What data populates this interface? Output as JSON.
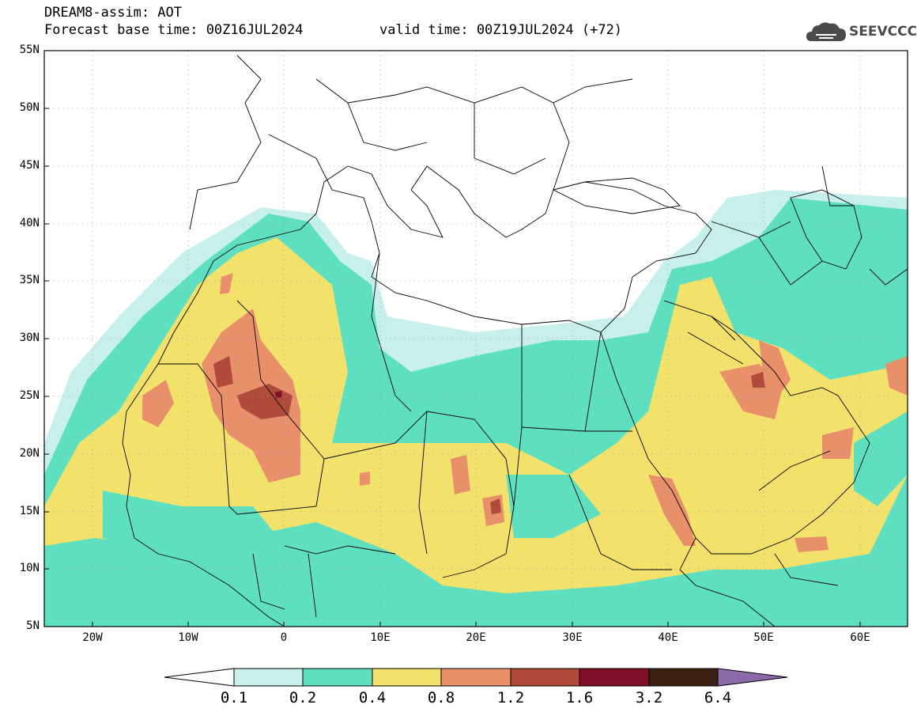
{
  "header": {
    "title": "DREAM8-assim: AOT",
    "base_time": "Forecast base time: 00Z16JUL2024",
    "valid_time": "valid time: 00Z19JUL2024 (+72)",
    "logo_text": "SEEVCCC"
  },
  "map": {
    "lat_labels": [
      "55N",
      "50N",
      "45N",
      "40N",
      "35N",
      "30N",
      "25N",
      "20N",
      "15N",
      "10N",
      "5N"
    ],
    "lon_labels": [
      "20W",
      "10W",
      "0",
      "10E",
      "20E",
      "30E",
      "40E",
      "50E",
      "60E"
    ],
    "lat_range": [
      5,
      55
    ],
    "lon_range": [
      -25,
      65
    ]
  },
  "colorbar": {
    "labels": [
      "0.1",
      "0.2",
      "0.4",
      "0.8",
      "1.2",
      "1.6",
      "3.2",
      "6.4"
    ],
    "colors": [
      "#c8f0ea",
      "#5ee0c0",
      "#f2e26c",
      "#e8906a",
      "#b04a3a",
      "#80102a",
      "#3a2010",
      "#8a6aa8"
    ]
  }
}
